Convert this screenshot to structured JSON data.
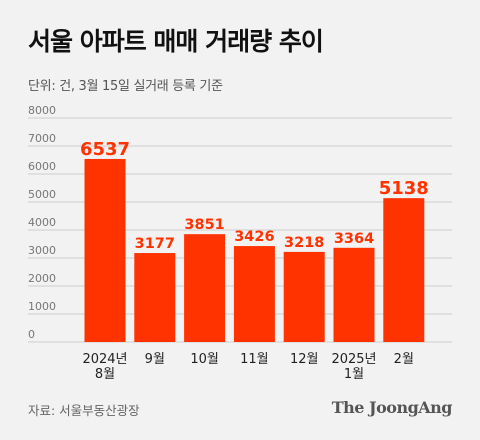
{
  "title": "서울 아파트 매매 거래량 추이",
  "subtitle": "단위: 건, 3월 15일 실거래 등록 기준",
  "source": "자료: 서울부동산광장",
  "brand": "The JoongAng",
  "chart_data": {
    "type": "bar",
    "categories": [
      [
        "2024년",
        "8월"
      ],
      [
        "9월"
      ],
      [
        "10월"
      ],
      [
        "11월"
      ],
      [
        "12월"
      ],
      [
        "2025년",
        "1월"
      ],
      [
        "2월"
      ]
    ],
    "values": [
      6537,
      3177,
      3851,
      3426,
      3218,
      3364,
      5138
    ],
    "ylim": [
      0,
      8000
    ],
    "yticks": [
      0,
      1000,
      2000,
      3000,
      4000,
      5000,
      6000,
      7000,
      8000
    ],
    "grid": true,
    "bar_color": "#ff3300",
    "label_color": "#ff3300"
  }
}
